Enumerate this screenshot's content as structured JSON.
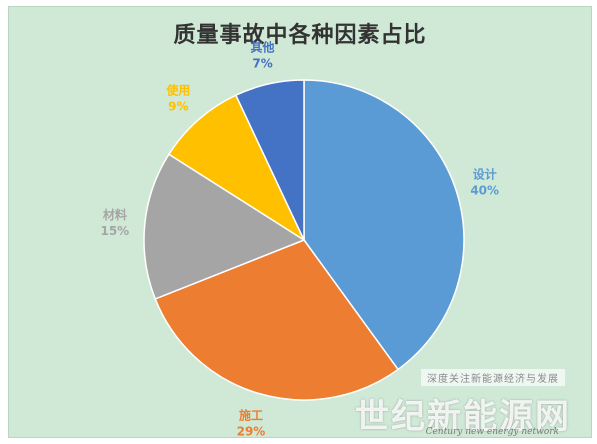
{
  "chart_data": {
    "type": "pie",
    "title": "质量事故中各种因素占比",
    "slices": [
      {
        "label": "设计",
        "value": 40,
        "value_text": "40%",
        "color": "#5b9bd5"
      },
      {
        "label": "施工",
        "value": 29,
        "value_text": "29%",
        "color": "#ed7d31"
      },
      {
        "label": "材料",
        "value": 15,
        "value_text": "15%",
        "color": "#a5a5a5"
      },
      {
        "label": "使用",
        "value": 9,
        "value_text": "9%",
        "color": "#ffc000"
      },
      {
        "label": "其他",
        "value": 7,
        "value_text": "7%",
        "color": "#4472c4"
      }
    ],
    "legend": "none",
    "background_color": "#cfe9d6"
  },
  "watermark": {
    "notice": "深度关注新能源经济与发展",
    "brand": "世纪新能源网",
    "brand_en": "Century new energy network"
  }
}
